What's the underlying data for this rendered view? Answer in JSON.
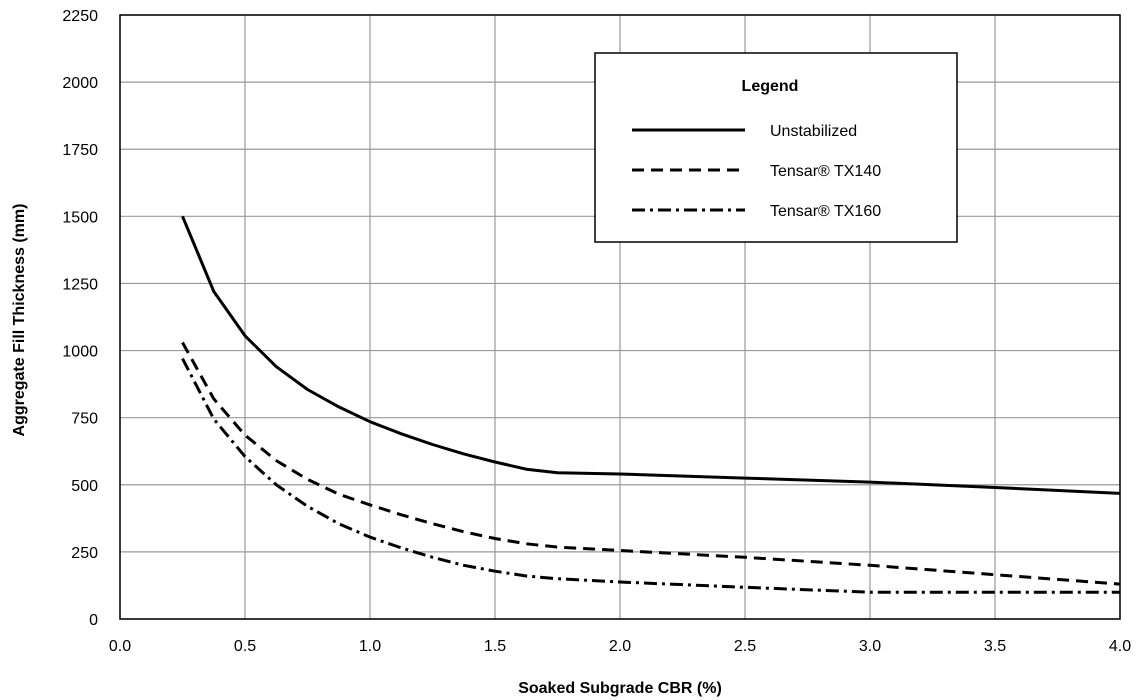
{
  "chart_data": {
    "type": "line",
    "xlabel": "Soaked Subgrade CBR (%)",
    "ylabel": "Aggregate Fill Thickness (mm)",
    "xlim": [
      0.0,
      4.0
    ],
    "ylim": [
      0,
      2250
    ],
    "x_ticks": [
      "0.0",
      "0.5",
      "1.0",
      "1.5",
      "2.0",
      "2.5",
      "3.0",
      "3.5",
      "4.0"
    ],
    "y_ticks": [
      "0",
      "250",
      "500",
      "750",
      "1000",
      "1250",
      "1500",
      "1750",
      "2000",
      "2250"
    ],
    "grid": true,
    "legend_title": "Legend",
    "legend_position": "top-right",
    "series": [
      {
        "name": "Unstabilized",
        "line_style": "solid",
        "color": "#000000",
        "x": [
          0.25,
          0.375,
          0.5,
          0.625,
          0.75,
          0.875,
          1.0,
          1.125,
          1.25,
          1.375,
          1.5,
          1.625,
          1.75,
          2.0,
          2.5,
          3.0,
          3.5,
          4.0
        ],
        "y": [
          1500,
          1220,
          1055,
          940,
          855,
          790,
          735,
          690,
          650,
          615,
          585,
          558,
          545,
          540,
          525,
          510,
          490,
          468
        ]
      },
      {
        "name": "Tensar® TX140",
        "line_style": "dashed",
        "color": "#000000",
        "x": [
          0.25,
          0.375,
          0.5,
          0.625,
          0.75,
          0.875,
          1.0,
          1.125,
          1.25,
          1.375,
          1.5,
          1.625,
          1.75,
          2.0,
          2.5,
          3.0,
          3.5,
          4.0
        ],
        "y": [
          1030,
          820,
          685,
          590,
          520,
          465,
          425,
          388,
          355,
          325,
          300,
          280,
          268,
          255,
          230,
          200,
          165,
          130
        ]
      },
      {
        "name": "Tensar® TX160",
        "line_style": "dash-dot",
        "color": "#000000",
        "x": [
          0.25,
          0.375,
          0.5,
          0.625,
          0.75,
          0.875,
          1.0,
          1.125,
          1.25,
          1.375,
          1.5,
          1.625,
          1.75,
          2.0,
          2.5,
          3.0,
          3.5,
          4.0
        ],
        "y": [
          970,
          745,
          605,
          500,
          420,
          355,
          305,
          265,
          230,
          200,
          178,
          160,
          150,
          138,
          118,
          100,
          100,
          100
        ]
      }
    ]
  }
}
